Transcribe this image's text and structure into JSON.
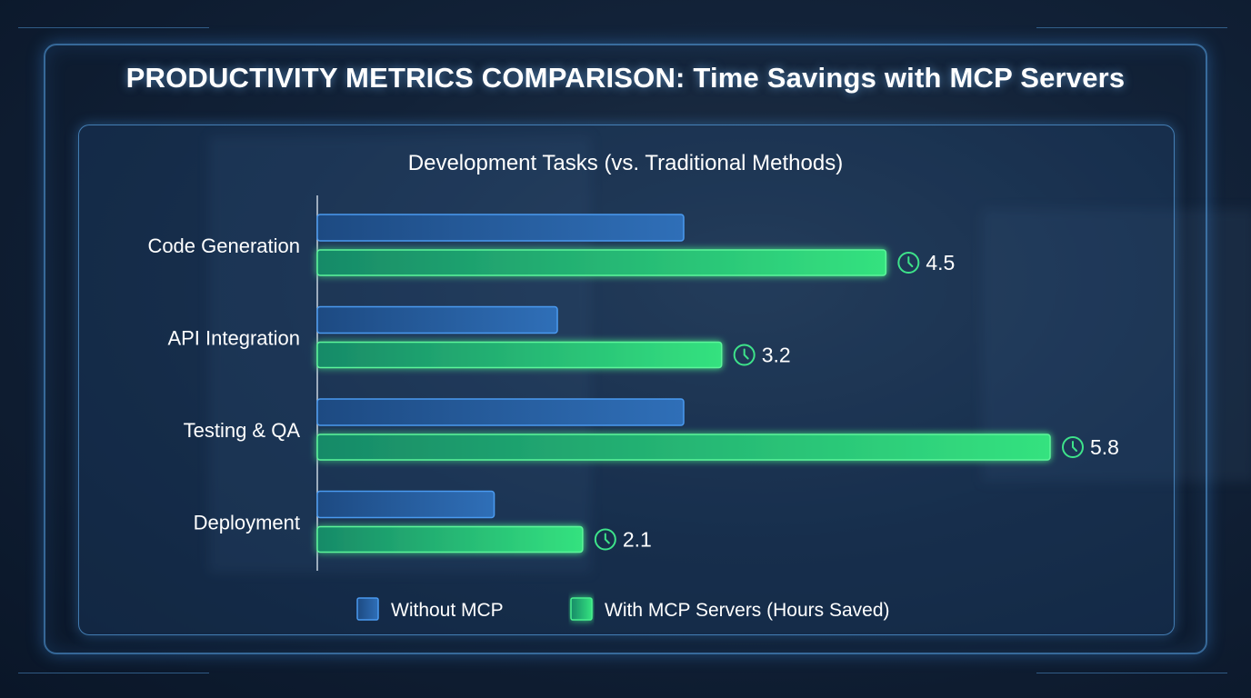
{
  "title": "PRODUCTIVITY METRICS COMPARISON: Time Savings with MCP Servers",
  "chart_data": {
    "type": "bar",
    "orientation": "horizontal",
    "title": "Development Tasks (vs. Traditional Methods)",
    "categories": [
      "Code Generation",
      "API Integration",
      "Testing & QA",
      "Deployment"
    ],
    "series": [
      {
        "name": "Without MCP",
        "values": [
          2.9,
          1.9,
          2.9,
          1.4
        ],
        "color": "#2f6fb8"
      },
      {
        "name": "With MCP Servers (Hours Saved)",
        "values": [
          4.5,
          3.2,
          5.8,
          2.1
        ],
        "color": "#2fe07f"
      }
    ],
    "data_labels": [
      "4.5",
      "3.2",
      "5.8",
      "2.1"
    ],
    "data_label_icon": "clock-icon",
    "xlim": [
      0,
      6
    ],
    "grid": false,
    "legend_position": "bottom"
  }
}
